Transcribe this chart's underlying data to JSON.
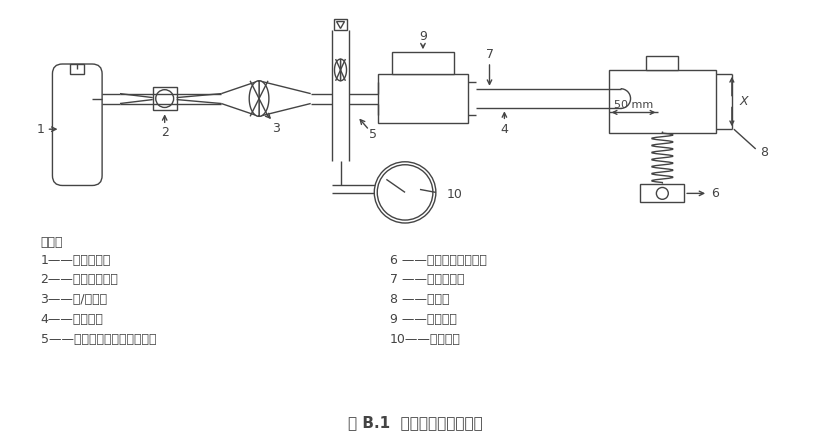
{
  "title": "图 B.1  抗扁瘪性测试连接图",
  "legend_title": "说明：",
  "legend_left": [
    "1——试验气体；",
    "2——压力调节器；",
    "3——开/关阀；",
    "4——试验管；",
    "5——可调空气或氧气流量计；"
  ],
  "legend_right": [
    "6 ——光滑的平行爪副；",
    "7 ——试验接头；",
    "8 ——间距；",
    "9 ——安装块；",
    "10——压力表。"
  ],
  "bg_color": "#ffffff",
  "line_color": "#444444",
  "fontsize": 9,
  "title_fontsize": 11
}
